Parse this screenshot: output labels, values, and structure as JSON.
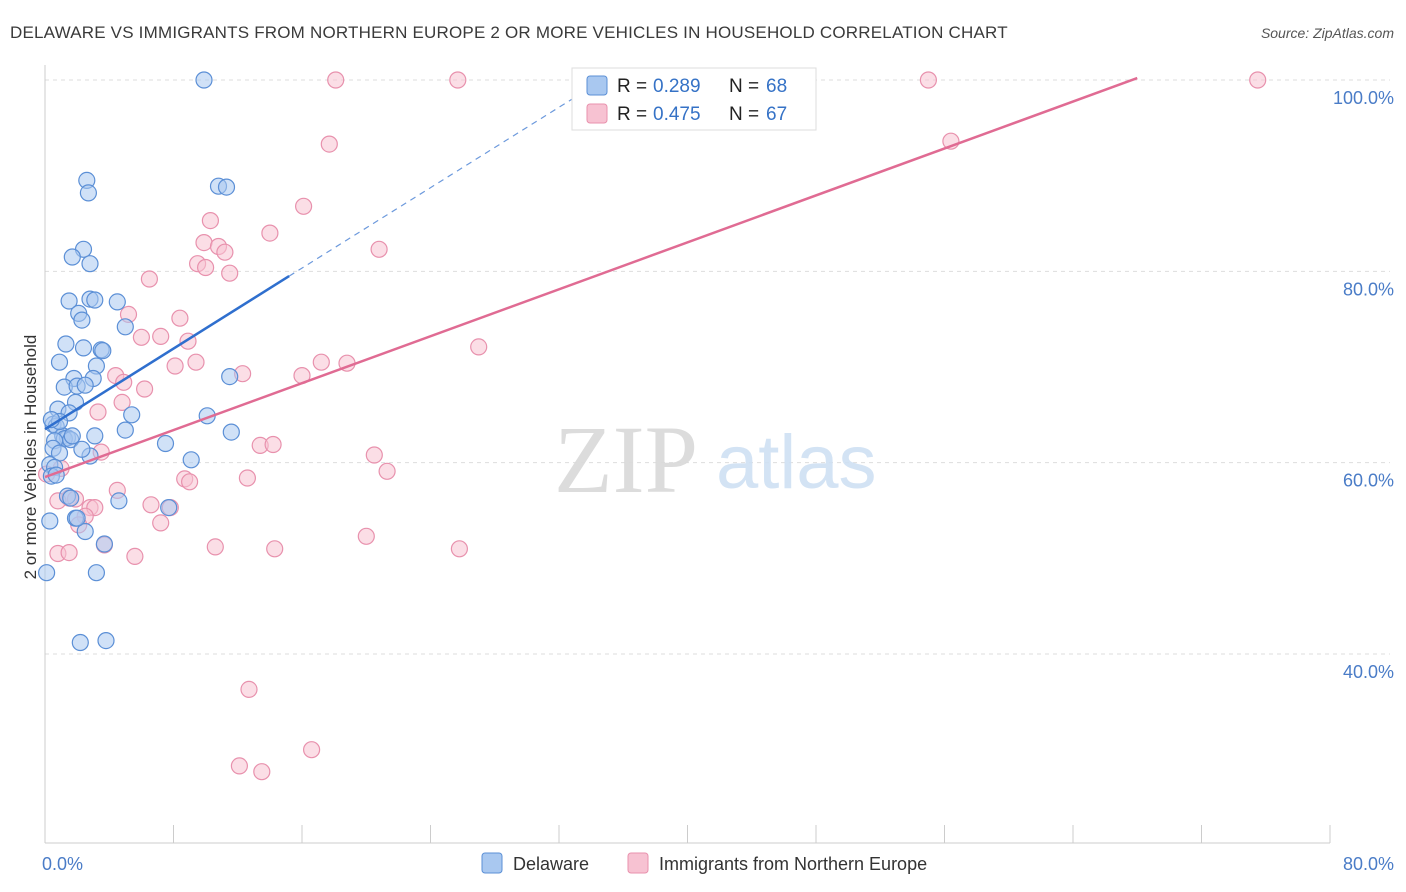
{
  "header": {
    "title": "DELAWARE VS IMMIGRANTS FROM NORTHERN EUROPE 2 OR MORE VEHICLES IN HOUSEHOLD CORRELATION CHART",
    "source": "Source: ZipAtlas.com"
  },
  "watermark": {
    "zip": "ZIP",
    "atlas": "atlas"
  },
  "legend": {
    "r_label": "R =",
    "n_label": "N =",
    "rows": [
      {
        "name": "Delaware",
        "r": "0.289",
        "n": "68"
      },
      {
        "name": "Immigrants from Northern Europe",
        "r": "0.475",
        "n": "67"
      }
    ]
  },
  "chart_data": {
    "type": "scatter",
    "title": "DELAWARE VS IMMIGRANTS FROM NORTHERN EUROPE 2 OR MORE VEHICLES IN HOUSEHOLD CORRELATION CHART",
    "xlabel": "",
    "ylabel": "2 or more Vehicles in Household",
    "xlim": [
      0,
      80
    ],
    "ylim": [
      20,
      102
    ],
    "x_tick_labels": [
      "0.0%",
      "80.0%"
    ],
    "y_ticks": [
      40,
      60,
      80,
      100
    ],
    "y_tick_labels": [
      "40.0%",
      "60.0%",
      "80.0%",
      "100.0%"
    ],
    "colors": {
      "delaware_fill": "#a9c8f0",
      "delaware_stroke": "#5b8fd6",
      "delaware_line": "#2f6fce",
      "northern_europe_fill": "#f7c2d2",
      "northern_europe_stroke": "#e891ad",
      "northern_europe_line": "#e06b93",
      "tick": "#4a7cc7",
      "grid": "#dddddd"
    },
    "series": [
      {
        "name": "Delaware",
        "r": 0.289,
        "n": 68,
        "trend": {
          "x0": 0,
          "y0": 63.5,
          "x1": 15.2,
          "y1": 79.5,
          "dash_x1": 35,
          "dash_y1": 100.3
        },
        "points": [
          [
            9.9,
            100.0
          ],
          [
            2.6,
            89.5
          ],
          [
            2.7,
            88.2
          ],
          [
            10.8,
            88.9
          ],
          [
            11.3,
            88.8
          ],
          [
            2.4,
            82.3
          ],
          [
            1.7,
            81.5
          ],
          [
            2.8,
            80.8
          ],
          [
            1.5,
            76.9
          ],
          [
            2.8,
            77.1
          ],
          [
            3.1,
            77.0
          ],
          [
            4.5,
            76.8
          ],
          [
            2.1,
            75.6
          ],
          [
            2.3,
            74.9
          ],
          [
            5.0,
            74.2
          ],
          [
            1.3,
            72.4
          ],
          [
            2.4,
            72.0
          ],
          [
            3.5,
            71.8
          ],
          [
            3.6,
            71.7
          ],
          [
            0.9,
            70.5
          ],
          [
            3.2,
            70.1
          ],
          [
            1.8,
            68.8
          ],
          [
            3.0,
            68.8
          ],
          [
            1.2,
            67.9
          ],
          [
            2.0,
            68.0
          ],
          [
            2.5,
            68.1
          ],
          [
            11.5,
            69.0
          ],
          [
            1.9,
            66.3
          ],
          [
            0.8,
            65.6
          ],
          [
            1.5,
            65.2
          ],
          [
            5.4,
            65.0
          ],
          [
            10.1,
            64.9
          ],
          [
            0.5,
            64.0
          ],
          [
            0.7,
            63.8
          ],
          [
            5.0,
            63.4
          ],
          [
            11.6,
            63.2
          ],
          [
            1.1,
            62.8
          ],
          [
            3.1,
            62.8
          ],
          [
            1.4,
            62.6
          ],
          [
            1.2,
            62.5
          ],
          [
            0.6,
            62.3
          ],
          [
            1.6,
            62.4
          ],
          [
            7.5,
            62.0
          ],
          [
            0.5,
            61.5
          ],
          [
            0.9,
            61.0
          ],
          [
            2.8,
            60.7
          ],
          [
            9.1,
            60.3
          ],
          [
            0.3,
            59.8
          ],
          [
            0.6,
            59.5
          ],
          [
            0.4,
            58.6
          ],
          [
            0.7,
            58.7
          ],
          [
            1.4,
            56.5
          ],
          [
            1.6,
            56.3
          ],
          [
            4.6,
            56.0
          ],
          [
            7.7,
            55.3
          ],
          [
            1.9,
            54.2
          ],
          [
            0.3,
            53.9
          ],
          [
            2.5,
            52.8
          ],
          [
            3.7,
            51.5
          ],
          [
            0.1,
            48.5
          ],
          [
            3.2,
            48.5
          ],
          [
            2.2,
            41.2
          ],
          [
            3.8,
            41.4
          ],
          [
            2.0,
            54.2
          ],
          [
            1.7,
            62.8
          ],
          [
            0.9,
            64.3
          ],
          [
            0.4,
            64.5
          ],
          [
            2.3,
            61.4
          ]
        ]
      },
      {
        "name": "Immigrants from Northern Europe",
        "r": 0.475,
        "n": 67,
        "trend": {
          "x0": 0,
          "y0": 58.5,
          "x1": 68,
          "y1": 100.2
        },
        "points": [
          [
            18.1,
            100.0
          ],
          [
            25.7,
            100.0
          ],
          [
            55.0,
            100.0
          ],
          [
            75.5,
            100.0
          ],
          [
            17.7,
            93.3
          ],
          [
            56.4,
            93.6
          ],
          [
            16.1,
            86.8
          ],
          [
            10.3,
            85.3
          ],
          [
            14.0,
            84.0
          ],
          [
            9.9,
            83.0
          ],
          [
            10.8,
            82.6
          ],
          [
            11.2,
            82.0
          ],
          [
            20.8,
            82.3
          ],
          [
            9.5,
            80.8
          ],
          [
            10.0,
            80.4
          ],
          [
            11.5,
            79.8
          ],
          [
            6.5,
            79.2
          ],
          [
            8.4,
            75.1
          ],
          [
            5.2,
            75.5
          ],
          [
            6.0,
            73.1
          ],
          [
            7.2,
            73.2
          ],
          [
            8.9,
            72.7
          ],
          [
            27.0,
            72.1
          ],
          [
            17.2,
            70.5
          ],
          [
            18.8,
            70.4
          ],
          [
            9.4,
            70.5
          ],
          [
            8.1,
            70.1
          ],
          [
            4.4,
            69.1
          ],
          [
            16.0,
            69.1
          ],
          [
            12.3,
            69.3
          ],
          [
            4.9,
            68.4
          ],
          [
            6.2,
            67.7
          ],
          [
            4.8,
            66.3
          ],
          [
            3.3,
            65.3
          ],
          [
            13.4,
            61.8
          ],
          [
            14.2,
            61.9
          ],
          [
            20.5,
            60.8
          ],
          [
            3.5,
            61.1
          ],
          [
            21.3,
            59.1
          ],
          [
            8.7,
            58.3
          ],
          [
            12.6,
            58.4
          ],
          [
            9.0,
            58.0
          ],
          [
            0.1,
            58.8
          ],
          [
            1.0,
            59.4
          ],
          [
            1.5,
            56.3
          ],
          [
            4.5,
            57.1
          ],
          [
            1.9,
            56.2
          ],
          [
            6.6,
            55.6
          ],
          [
            7.8,
            55.3
          ],
          [
            2.8,
            55.3
          ],
          [
            3.1,
            55.3
          ],
          [
            2.5,
            54.4
          ],
          [
            0.8,
            56.0
          ],
          [
            7.2,
            53.7
          ],
          [
            2.1,
            53.5
          ],
          [
            20.0,
            52.3
          ],
          [
            10.6,
            51.2
          ],
          [
            14.3,
            51.0
          ],
          [
            25.8,
            51.0
          ],
          [
            3.7,
            51.4
          ],
          [
            0.8,
            50.5
          ],
          [
            1.5,
            50.6
          ],
          [
            5.6,
            50.2
          ],
          [
            12.7,
            36.3
          ],
          [
            16.6,
            30.0
          ],
          [
            12.1,
            28.3
          ],
          [
            13.5,
            27.7
          ]
        ]
      }
    ]
  }
}
